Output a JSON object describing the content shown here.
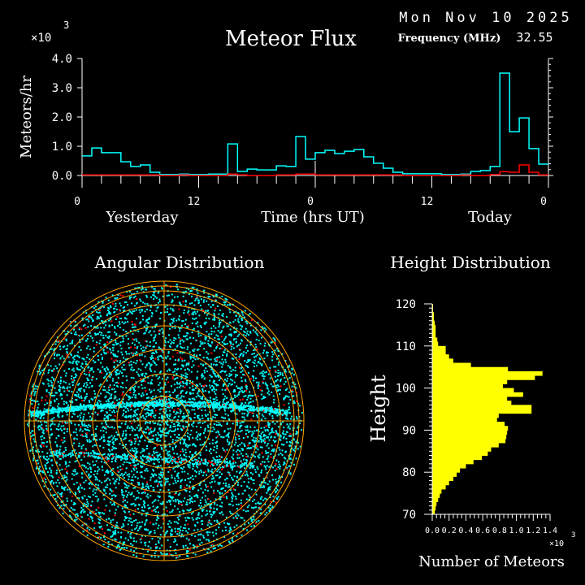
{
  "header": {
    "title": "Meteor Flux",
    "date": "Mon Nov 10 2025",
    "frequency_label": "Frequency (MHz)",
    "frequency_value": "32.55"
  },
  "colors": {
    "background": "#000000",
    "all_meteors": "#00ffff",
    "subset": "#ff0000",
    "grid": "#ffa500",
    "histogram": "#ffff00",
    "axis": "#ffffff"
  },
  "chart_data": [
    {
      "type": "line",
      "title": "Meteor Flux",
      "ylabel": "Meteors/hr",
      "xlabel": "Time (hrs UT)",
      "yscale_label": "×10",
      "yscale_exp": "3",
      "ylim": [
        0,
        4.0
      ],
      "yticks": [
        "0.0",
        "1.0",
        "2.0",
        "3.0",
        "4.0"
      ],
      "xticks": [
        "0",
        "12",
        "0",
        "12",
        "0"
      ],
      "day_labels": [
        "Yesterday",
        "Today"
      ],
      "step": true,
      "series": [
        {
          "color": "#00ffff",
          "values": [
            0.67,
            0.94,
            0.78,
            0.78,
            0.47,
            0.31,
            0.36,
            0.11,
            0.03,
            0.03,
            0.05,
            0.03,
            0.03,
            0.05,
            0.05,
            1.08,
            0.14,
            0.22,
            0.19,
            0.19,
            0.33,
            0.31,
            1.33,
            0.56,
            0.78,
            0.86,
            0.75,
            0.83,
            0.89,
            0.64,
            0.42,
            0.25,
            0.11,
            0.06,
            0.06,
            0.06,
            0.06,
            0.03,
            0.03,
            0.05,
            0.14,
            0.17,
            0.31,
            3.5,
            1.5,
            1.97,
            0.92,
            0.39
          ]
        },
        {
          "color": "#ff0000",
          "values": [
            0.02,
            0.02,
            0.02,
            0.02,
            0.02,
            0.02,
            0.02,
            0.02,
            0.0,
            0.0,
            0.02,
            0.0,
            0.0,
            0.0,
            0.0,
            0.05,
            0.02,
            0.0,
            0.0,
            0.0,
            0.02,
            0.02,
            0.05,
            0.05,
            0.02,
            0.02,
            0.02,
            0.02,
            0.02,
            0.02,
            0.02,
            0.02,
            0.02,
            0.0,
            0.0,
            0.0,
            0.0,
            0.0,
            0.0,
            0.02,
            0.0,
            0.0,
            0.03,
            0.13,
            0.11,
            0.36,
            0.11,
            0.02
          ]
        }
      ]
    },
    {
      "type": "scatter",
      "title": "Angular Distribution",
      "polar": true
    },
    {
      "type": "bar",
      "orientation": "horizontal",
      "title": "Height Distribution",
      "ylabel": "Height",
      "xlabel": "Number of Meteors",
      "xscale_label": "×10",
      "xscale_exp": "3",
      "ylim": [
        70,
        120
      ],
      "xlim": [
        0,
        1.4
      ],
      "yticks": [
        "70",
        "80",
        "90",
        "100",
        "110",
        "120"
      ],
      "xticks": [
        "0.0",
        "0.2",
        "0.4",
        "0.6",
        "0.8",
        "1.0",
        "1.2",
        "1.4"
      ],
      "bin_start": 70,
      "bin_width": 1,
      "values": [
        0.03,
        0.04,
        0.05,
        0.07,
        0.09,
        0.11,
        0.16,
        0.2,
        0.25,
        0.29,
        0.33,
        0.4,
        0.49,
        0.59,
        0.66,
        0.7,
        0.79,
        0.87,
        0.88,
        0.89,
        0.9,
        0.86,
        0.77,
        0.79,
        1.18,
        1.18,
        0.94,
        0.89,
        1.08,
        0.97,
        0.84,
        0.89,
        1.22,
        1.31,
        0.9,
        0.46,
        0.25,
        0.2,
        0.16,
        0.16,
        0.07,
        0.06,
        0.04,
        0.04,
        0.04,
        0.03,
        0.02,
        0.02,
        0.01,
        0.01
      ]
    }
  ]
}
